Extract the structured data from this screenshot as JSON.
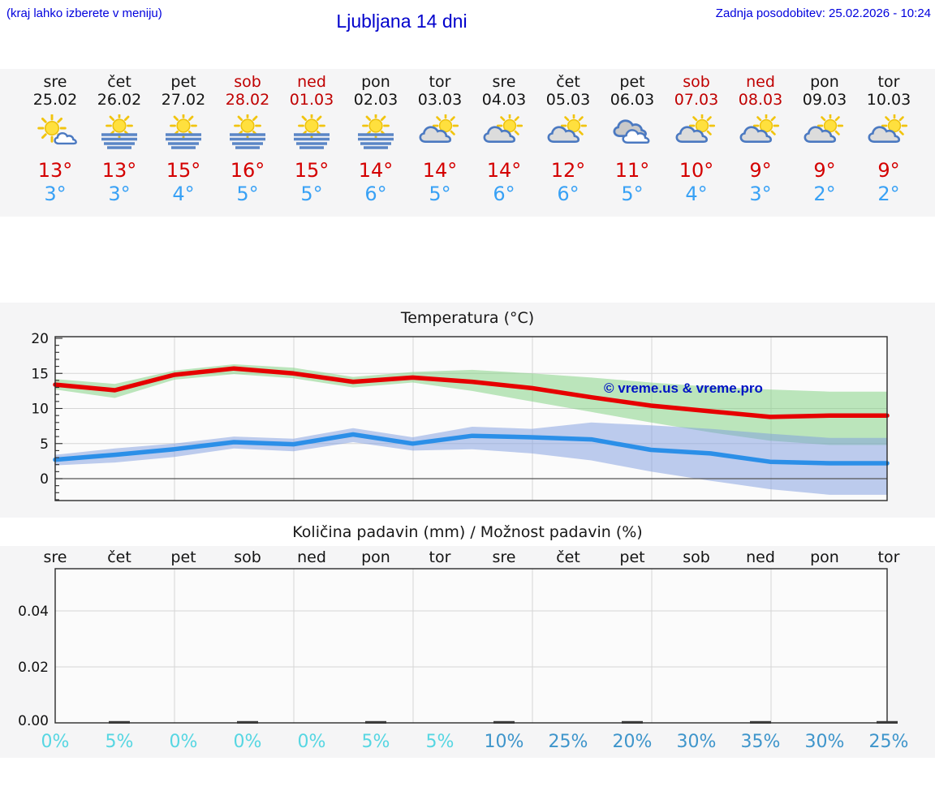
{
  "header": {
    "hint": "(kraj lahko izberete v meniju)",
    "title": "Ljubljana 14 dni",
    "updated": "Zadnja posodobitev: 25.02.2026 - 10:24"
  },
  "colors": {
    "header_blue": "#0000dd",
    "weekend_red": "#c00000",
    "tmax_red": "#d40000",
    "tmin_blue": "#38a1f5",
    "section_bg": "#f5f5f6",
    "prob_low_cyan": "#56d6e2",
    "prob_high_blue": "#3e95cb"
  },
  "days": [
    {
      "name": "sre",
      "date": "25.02",
      "weekend": false,
      "icon": "sun-small-cloud",
      "tmax": "13°",
      "tmin": "3°"
    },
    {
      "name": "čet",
      "date": "26.02",
      "weekend": false,
      "icon": "sun-fog",
      "tmax": "13°",
      "tmin": "3°"
    },
    {
      "name": "pet",
      "date": "27.02",
      "weekend": false,
      "icon": "sun-fog",
      "tmax": "15°",
      "tmin": "4°"
    },
    {
      "name": "sob",
      "date": "28.02",
      "weekend": true,
      "icon": "sun-fog",
      "tmax": "16°",
      "tmin": "5°"
    },
    {
      "name": "ned",
      "date": "01.03",
      "weekend": true,
      "icon": "sun-fog",
      "tmax": "15°",
      "tmin": "5°"
    },
    {
      "name": "pon",
      "date": "02.03",
      "weekend": false,
      "icon": "sun-fog",
      "tmax": "14°",
      "tmin": "6°"
    },
    {
      "name": "tor",
      "date": "03.03",
      "weekend": false,
      "icon": "cloud-sun",
      "tmax": "14°",
      "tmin": "5°"
    },
    {
      "name": "sre",
      "date": "04.03",
      "weekend": false,
      "icon": "cloud-sun",
      "tmax": "14°",
      "tmin": "6°"
    },
    {
      "name": "čet",
      "date": "05.03",
      "weekend": false,
      "icon": "cloud-sun",
      "tmax": "12°",
      "tmin": "6°"
    },
    {
      "name": "pet",
      "date": "06.03",
      "weekend": false,
      "icon": "clouds",
      "tmax": "11°",
      "tmin": "5°"
    },
    {
      "name": "sob",
      "date": "07.03",
      "weekend": true,
      "icon": "cloud-sun",
      "tmax": "10°",
      "tmin": "4°"
    },
    {
      "name": "ned",
      "date": "08.03",
      "weekend": true,
      "icon": "cloud-sun",
      "tmax": "9°",
      "tmin": "3°"
    },
    {
      "name": "pon",
      "date": "09.03",
      "weekend": false,
      "icon": "cloud-sun",
      "tmax": "9°",
      "tmin": "2°"
    },
    {
      "name": "tor",
      "date": "10.03",
      "weekend": false,
      "icon": "cloud-sun",
      "tmax": "9°",
      "tmin": "2°"
    }
  ],
  "chart_data": [
    {
      "type": "line",
      "title": "Temperatura (°C)",
      "watermark": "© vreme.us & vreme.pro",
      "x_labels": [
        "sre 25.02",
        "čet 26.02",
        "pet 27.02",
        "sob 28.02",
        "ned 01.03",
        "pon 02.03",
        "tor 03.03",
        "sre 04.03",
        "čet 05.03",
        "pet 06.03",
        "sob 07.03",
        "ned 08.03",
        "pon 09.03",
        "tor 10.03"
      ],
      "ylim": [
        -3,
        20.2
      ],
      "yticks": [
        20,
        15,
        10,
        5,
        0
      ],
      "grid": true,
      "legend": "none",
      "series": [
        {
          "name": "max-temperature",
          "color": "#e60000",
          "values": [
            13.4,
            12.6,
            14.8,
            15.7,
            15.0,
            13.8,
            14.4,
            13.8,
            12.9,
            11.6,
            10.4,
            9.6,
            8.8,
            9.0
          ]
        },
        {
          "name": "min-temperature",
          "color": "#2b8fe8",
          "values": [
            2.7,
            3.4,
            4.2,
            5.2,
            4.9,
            6.3,
            5.0,
            6.1,
            5.9,
            5.6,
            4.1,
            3.6,
            2.4,
            2.2
          ]
        }
      ],
      "bands": [
        {
          "name": "max-temperature-range",
          "color": "#7ccf7c",
          "upper": [
            14.2,
            13.5,
            15.4,
            16.3,
            15.8,
            14.5,
            15.2,
            15.5,
            15.0,
            14.4,
            13.7,
            13.1,
            12.7,
            12.4
          ],
          "lower": [
            12.7,
            11.5,
            14.1,
            14.9,
            14.3,
            13.0,
            13.7,
            12.5,
            11.0,
            9.5,
            8.0,
            6.6,
            5.4,
            4.8
          ]
        },
        {
          "name": "min-temperature-range",
          "color": "#7d9ce0",
          "upper": [
            3.4,
            4.3,
            5.0,
            6.0,
            5.7,
            7.2,
            5.9,
            7.4,
            7.1,
            8.0,
            7.6,
            7.1,
            6.4,
            5.8
          ],
          "lower": [
            1.9,
            2.3,
            3.1,
            4.3,
            3.9,
            5.2,
            4.0,
            4.2,
            3.6,
            2.6,
            1.0,
            -0.3,
            -1.5,
            -2.3
          ]
        }
      ]
    },
    {
      "type": "bar",
      "title": "Količina padavin (mm) / Možnost padavin (%)",
      "categories": [
        "sre",
        "čet",
        "pet",
        "sob",
        "ned",
        "pon",
        "tor",
        "sre",
        "čet",
        "pet",
        "sob",
        "ned",
        "pon",
        "tor"
      ],
      "values": [
        0,
        0,
        0,
        0,
        0,
        0,
        0,
        0,
        0,
        0,
        0,
        0,
        0,
        0
      ],
      "yticks": [
        "0.00",
        "0.02",
        "0.04"
      ],
      "ylim": [
        0,
        0.053
      ],
      "grid": true,
      "probabilities": [
        {
          "label": "0%",
          "value": 0,
          "color": "#56d6e2"
        },
        {
          "label": "5%",
          "value": 5,
          "color": "#56d6e2"
        },
        {
          "label": "0%",
          "value": 0,
          "color": "#56d6e2"
        },
        {
          "label": "0%",
          "value": 0,
          "color": "#56d6e2"
        },
        {
          "label": "0%",
          "value": 0,
          "color": "#56d6e2"
        },
        {
          "label": "5%",
          "value": 5,
          "color": "#56d6e2"
        },
        {
          "label": "5%",
          "value": 5,
          "color": "#56d6e2"
        },
        {
          "label": "10%",
          "value": 10,
          "color": "#3e95cb"
        },
        {
          "label": "25%",
          "value": 25,
          "color": "#3e95cb"
        },
        {
          "label": "20%",
          "value": 20,
          "color": "#3e95cb"
        },
        {
          "label": "30%",
          "value": 30,
          "color": "#3e95cb"
        },
        {
          "label": "35%",
          "value": 35,
          "color": "#3e95cb"
        },
        {
          "label": "30%",
          "value": 30,
          "color": "#3e95cb"
        },
        {
          "label": "25%",
          "value": 25,
          "color": "#3e95cb"
        }
      ]
    }
  ]
}
